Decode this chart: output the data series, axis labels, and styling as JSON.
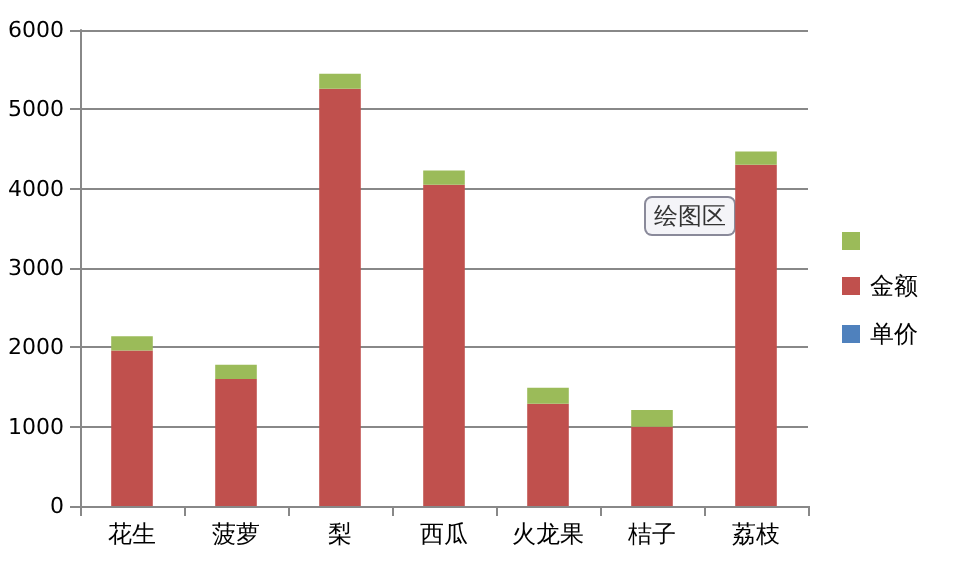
{
  "chart_data": {
    "type": "bar",
    "stacked": true,
    "categories": [
      "花生",
      "菠萝",
      "梨",
      "西瓜",
      "火龙果",
      "桔子",
      "荔枝"
    ],
    "series": [
      {
        "name": "单价",
        "color": "#4f81bd",
        "values": [
          null,
          null,
          null,
          null,
          null,
          null,
          null
        ]
      },
      {
        "name": "金额",
        "color": "#c0504d",
        "values": [
          1960,
          1600,
          5260,
          4050,
          1290,
          1000,
          4300
        ]
      },
      {
        "color": "#9bbb59",
        "values": [
          180,
          180,
          190,
          180,
          200,
          210,
          170
        ]
      }
    ],
    "ylim": [
      0,
      6000
    ],
    "yticks": [
      0,
      1000,
      2000,
      3000,
      4000,
      5000,
      6000
    ],
    "grid": "y",
    "legend": "right",
    "annotations": [
      "绘图区"
    ]
  }
}
